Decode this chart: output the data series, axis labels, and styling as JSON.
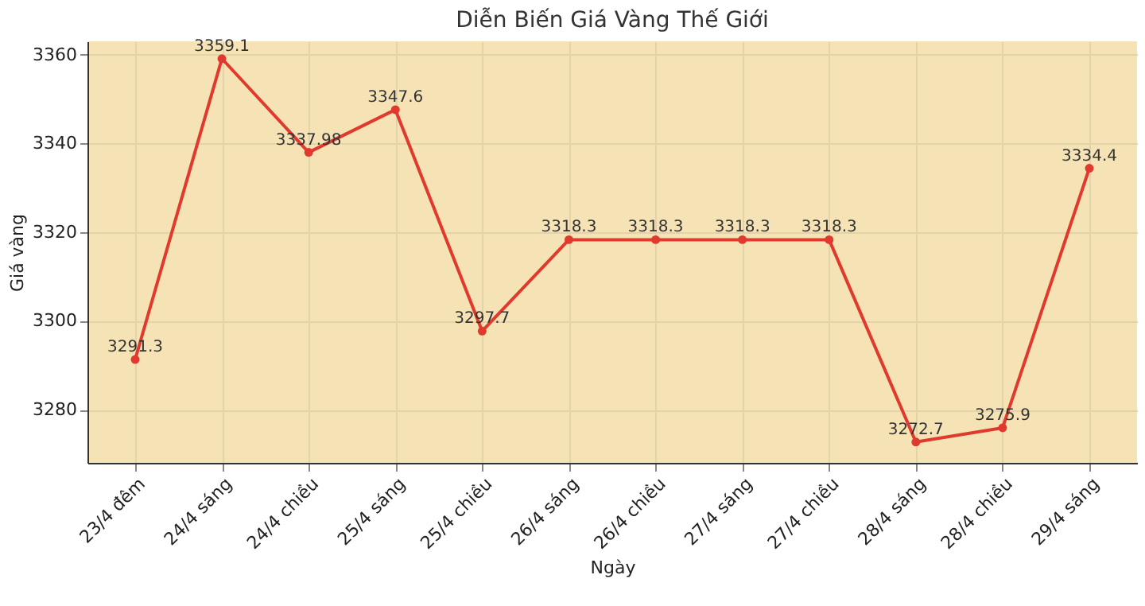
{
  "chart_data": {
    "type": "line",
    "title": "Diễn Biến Giá Vàng Thế Giới",
    "xlabel": "Ngày",
    "ylabel": "Giá vàng",
    "categories": [
      "23/4 đêm",
      "24/4 sáng",
      "24/4 chiều",
      "25/4 sáng",
      "25/4 chiều",
      "26/4 sáng",
      "26/4 chiều",
      "27/4 sáng",
      "27/4 chiều",
      "28/4 sáng",
      "28/4 chiều",
      "29/4 sáng"
    ],
    "series": [
      {
        "color": "#e03a2f",
        "values": [
          3291.3,
          3359.1,
          3337.98,
          3347.6,
          3297.7,
          3318.3,
          3318.3,
          3318.3,
          3318.3,
          3272.7,
          3275.9,
          3334.4
        ]
      }
    ],
    "ylim": [
      3268,
      3363
    ],
    "yticks": [
      3280,
      3300,
      3320,
      3340,
      3360
    ],
    "grid": true,
    "marker": "circle",
    "line_style": "solid",
    "data_labels": true
  }
}
